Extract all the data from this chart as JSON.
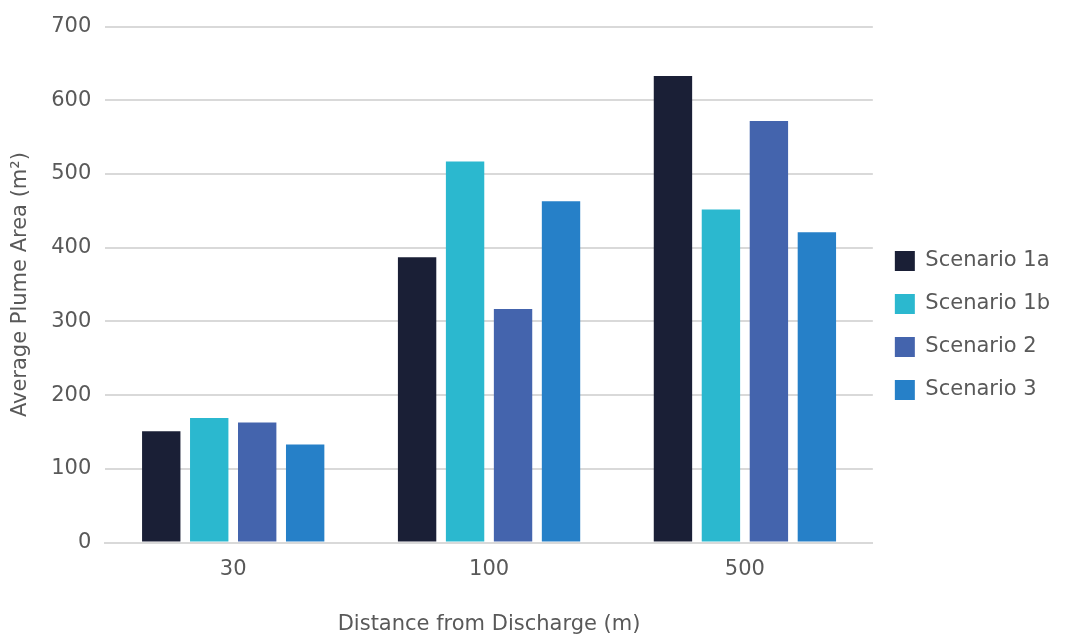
{
  "chart_data": {
    "type": "bar",
    "xlabel": "Distance from Discharge (m)",
    "ylabel": "Average Plume Area (m²)",
    "categories": [
      "30",
      "100",
      "500"
    ],
    "series": [
      {
        "name": "Scenario 1a",
        "color": "#1a1f36",
        "values": [
          151,
          387,
          633
        ]
      },
      {
        "name": "Scenario 1b",
        "color": "#2bb8cf",
        "values": [
          169,
          517,
          452
        ]
      },
      {
        "name": "Scenario 2",
        "color": "#4464ad",
        "values": [
          163,
          317,
          572
        ]
      },
      {
        "name": "Scenario 3",
        "color": "#2680c8",
        "values": [
          133,
          463,
          421
        ]
      }
    ],
    "ylim": [
      0,
      700
    ],
    "yticks": [
      0,
      100,
      200,
      300,
      400,
      500,
      600,
      700
    ],
    "grid": "y",
    "legend": "right"
  }
}
